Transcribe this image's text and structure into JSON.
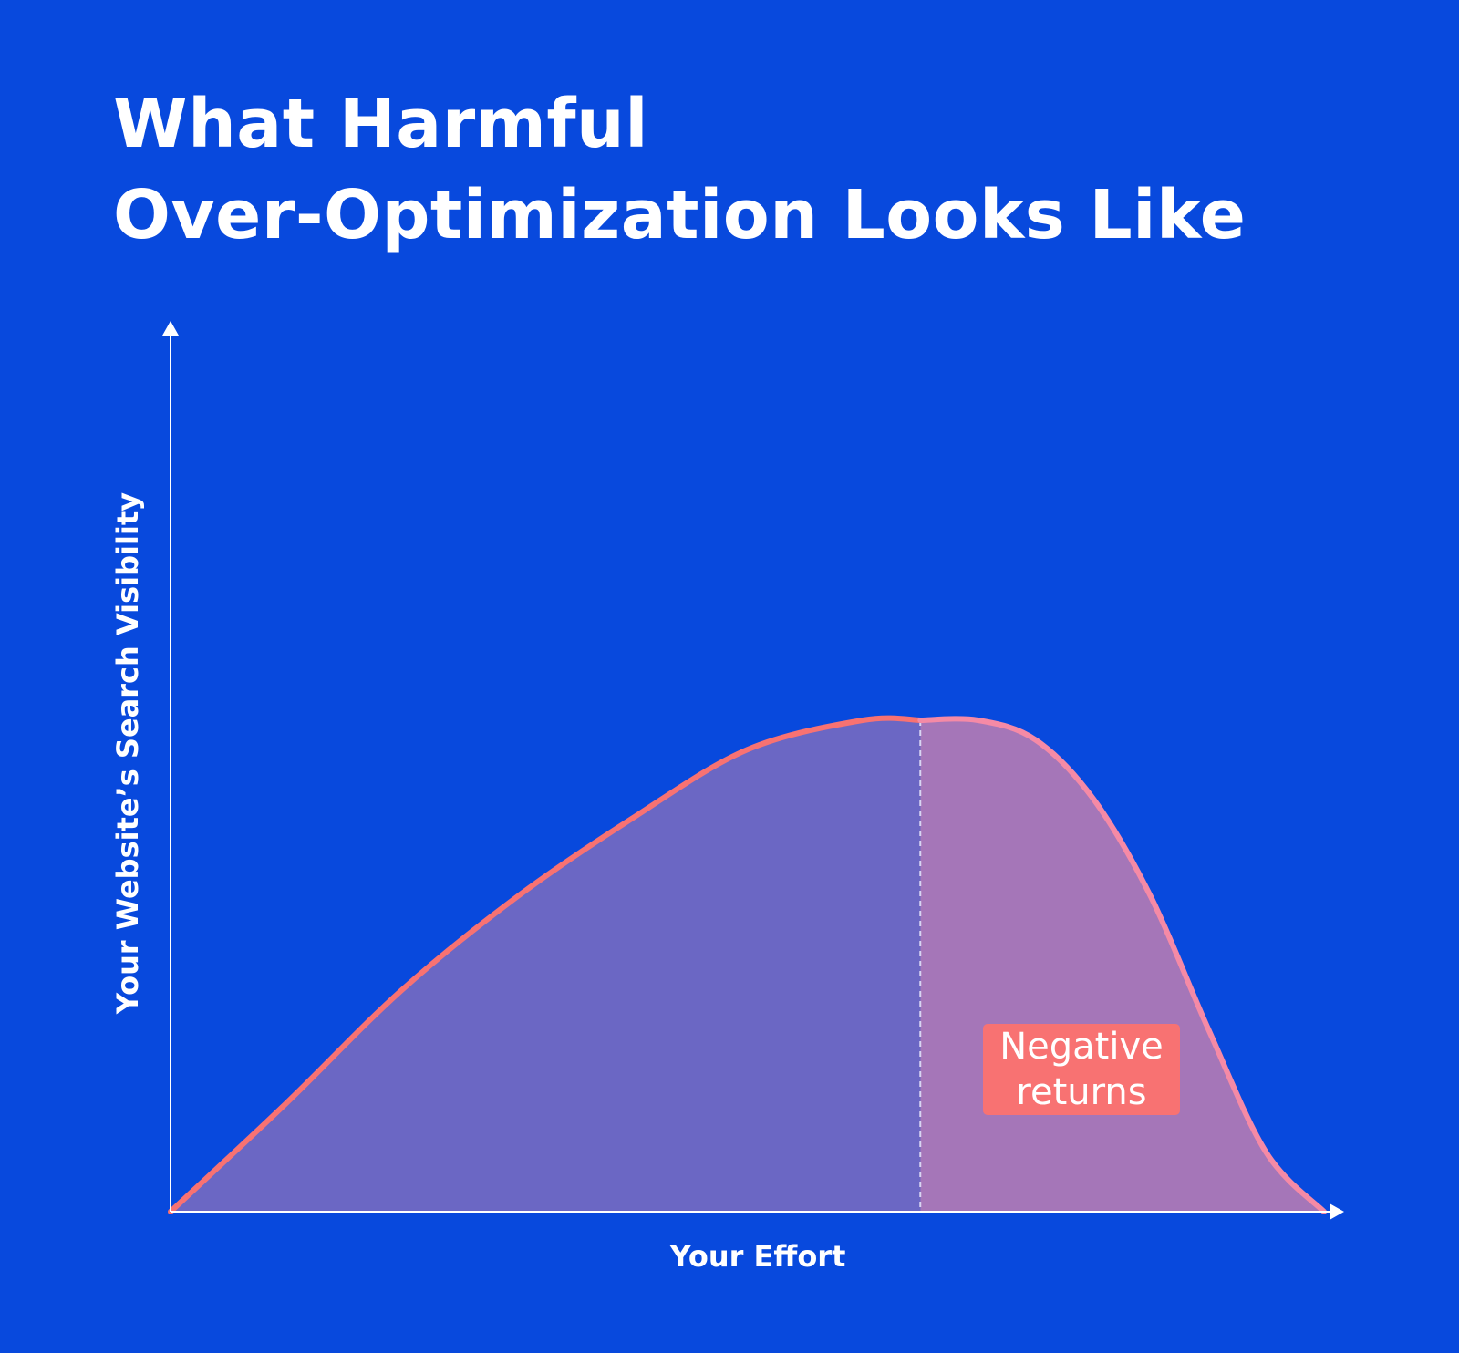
{
  "title": {
    "line1": "What Harmful",
    "line2": "Over-Optimization Looks Like"
  },
  "chart_data": {
    "type": "area",
    "title": "What Harmful Over-Optimization Looks Like",
    "xlabel": "Your Effort",
    "ylabel": "Your Website’s Search Visibility",
    "xlim": [
      0,
      100
    ],
    "ylim": [
      0,
      100
    ],
    "grid": false,
    "x": [
      0,
      10,
      20,
      30,
      40,
      50,
      60,
      65,
      70,
      75,
      80,
      85,
      90,
      95,
      100
    ],
    "series": [
      {
        "values": [
          0,
          22,
          45,
          64,
          80,
          94,
          100,
          100,
          100,
          96,
          84,
          64,
          37,
          12,
          0
        ]
      }
    ],
    "threshold_x": 65,
    "annotation": {
      "label_line1": "Negative",
      "label_line2": "returns"
    },
    "colors": {
      "background": "#0849dd",
      "curve": "#f87272",
      "curve_right": "#f58aa6",
      "fill_left": "#6b67c4",
      "fill_right": "#a576b8",
      "axis": "#ffffff",
      "badge": "#f87272"
    }
  }
}
